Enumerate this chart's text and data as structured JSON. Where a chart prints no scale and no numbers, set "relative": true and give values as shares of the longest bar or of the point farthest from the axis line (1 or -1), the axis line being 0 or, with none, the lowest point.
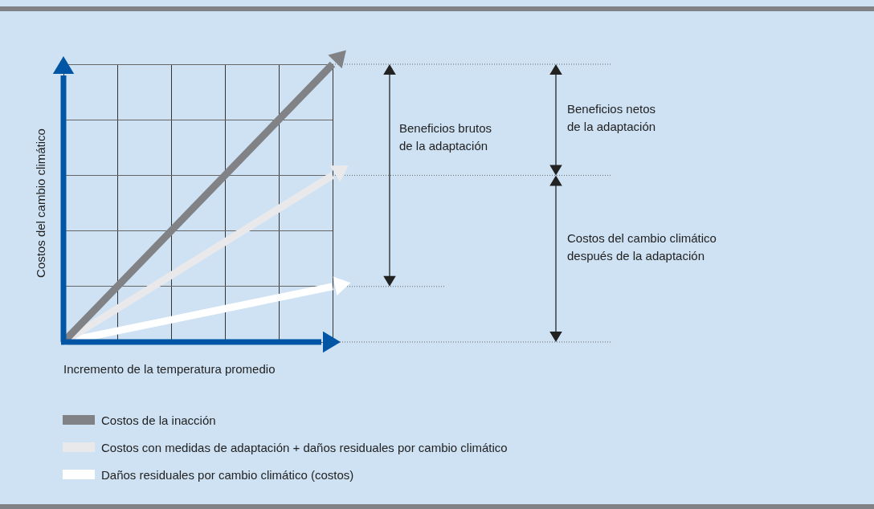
{
  "chart_data": {
    "type": "line",
    "relative": true,
    "xlabel": "Incremento de la temperatura promedio",
    "ylabel": "Costos del cambio climático",
    "categories": [
      null,
      null,
      null,
      null,
      null,
      null
    ],
    "series": [
      {
        "name": "Costos de la inacción",
        "color": "#808285",
        "values": [
          0,
          0.2,
          0.4,
          0.6,
          0.8,
          1
        ]
      },
      {
        "name": "Costos con medidas de adaptación + daños residuales por cambio climático",
        "color": "#e9e9eb",
        "values": [
          0,
          0.12,
          0.24,
          0.36,
          0.48,
          0.6
        ]
      },
      {
        "name": "Daños residuales por cambio climático (costos)",
        "color": "#ffffff",
        "values": [
          0,
          0.04,
          0.08,
          0.12,
          0.16,
          0.2
        ]
      }
    ],
    "annotations": [
      "Beneficios brutos\nde la adaptación",
      "Beneficios netos\nde la adaptación",
      "Costos del cambio climático\ndespués de la adaptación"
    ],
    "grid": true,
    "legend": "bottom",
    "marker": "none",
    "line_style": "solid"
  }
}
